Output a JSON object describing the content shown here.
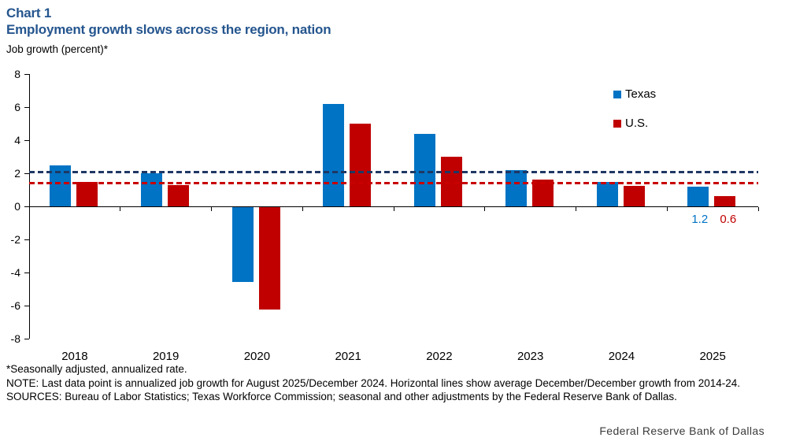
{
  "header": {
    "chart_label": "Chart 1",
    "title": "Employment growth slows across the region, nation"
  },
  "y_axis_label": "Job growth (percent)*",
  "chart_data": {
    "type": "bar",
    "categories": [
      "2018",
      "2019",
      "2020",
      "2021",
      "2022",
      "2023",
      "2024",
      "2025"
    ],
    "series": [
      {
        "name": "Texas",
        "color": "#0073c4",
        "values": [
          2.5,
          2.0,
          -4.5,
          6.2,
          4.4,
          2.2,
          1.5,
          1.2
        ]
      },
      {
        "name": "U.S.",
        "color": "#c00000",
        "values": [
          1.5,
          1.3,
          -6.2,
          5.0,
          3.0,
          1.6,
          1.25,
          0.6
        ]
      }
    ],
    "ylim": [
      -8,
      8
    ],
    "ytick_step": 2,
    "grid": false,
    "legend_position": "upper right",
    "avg_reference_lines": [
      {
        "name": "Texas average Dec/Dec growth 2014-24",
        "value": 2.05,
        "color": "#1f3864"
      },
      {
        "name": "U.S. average Dec/Dec growth 2014-24",
        "value": 1.4,
        "color": "#c80000"
      }
    ],
    "last_point_labels": {
      "category": "2025",
      "texas": "1.2",
      "us": "0.6"
    }
  },
  "legend": {
    "texas_label": "Texas",
    "us_label": "U.S."
  },
  "footnotes": [
    "*Seasonally adjusted, annualized rate.",
    "NOTE: Last data point is annualized job growth for August 2025/December 2024. Horizontal lines show average December/December growth from 2014-24.",
    "SOURCES: Bureau of Labor Statistics; Texas Workforce Commission; seasonal and other adjustments by the Federal Reserve Bank of Dallas."
  ],
  "branding": "Federal Reserve Bank of Dallas"
}
